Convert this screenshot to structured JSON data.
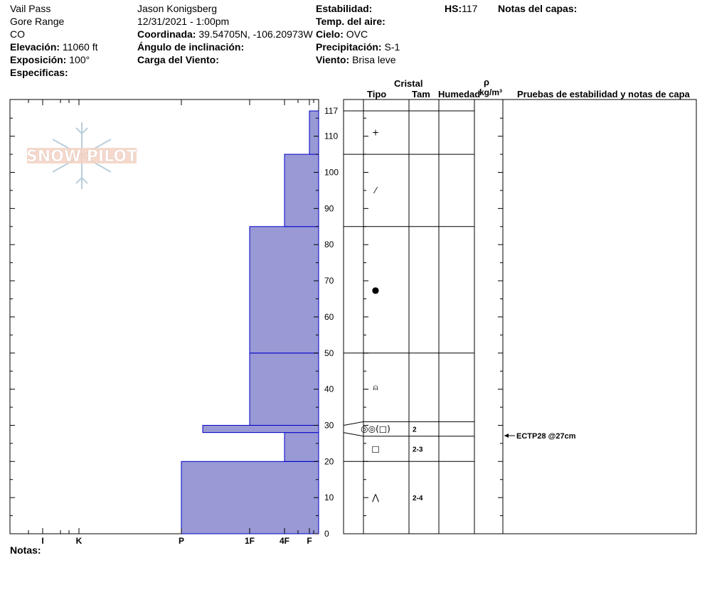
{
  "header": {
    "location": "Vail Pass",
    "range": "Gore Range",
    "state": "CO",
    "elevation_label": "Elevación:",
    "elevation": "11060 ft",
    "aspect_label": "Exposición:",
    "aspect": "100°",
    "specifics_label": "Especificas:",
    "observer": "Jason Konigsberg",
    "datetime": "12/31/2021 - 1:00pm",
    "coord_label": "Coordinada:",
    "coord": "39.54705N, -106.20973W",
    "slope_label": "Ángulo de inclinación:",
    "wind_load_label": "Carga del Viento:",
    "stability_label": "Estabilidad:",
    "air_temp_label": "Temp. del aire:",
    "sky_label": "Cielo:",
    "sky": "OVC",
    "precip_label": "Precipitación:",
    "precip": "S-1",
    "wind_label": "Viento:",
    "wind": "Brisa leve",
    "hs_label": "HS:",
    "hs": "117",
    "layer_notes_label": "Notas del capas:"
  },
  "notes_label": "Notas:",
  "logo_text": "SNOW PILOT",
  "table_headers": {
    "crystal": "Cristal",
    "type": "Tipo",
    "size": "Tam",
    "moisture": "Humedad",
    "rho": "ρ",
    "density_unit": "kg/m³",
    "tests": "Pruebas de estabilidad y notas de capa"
  },
  "test_result": "ECTP28 @27cm",
  "chart_data": {
    "type": "bar",
    "orientation": "horizontal",
    "y_axis": {
      "min": 0,
      "max": 117,
      "ticks": [
        0,
        10,
        20,
        30,
        40,
        50,
        60,
        70,
        80,
        90,
        100,
        110,
        117
      ]
    },
    "x_axis": {
      "categories": [
        "I",
        "K",
        "P",
        "1F",
        "4F",
        "F"
      ]
    },
    "hardness_profile": [
      {
        "bottom": 0,
        "top": 20,
        "hardness": "P"
      },
      {
        "bottom": 20,
        "top": 28,
        "hardness": "4F"
      },
      {
        "bottom": 28,
        "top": 30,
        "hardness": "P+"
      },
      {
        "bottom": 30,
        "top": 50,
        "hardness": "1F"
      },
      {
        "bottom": 50,
        "top": 85,
        "hardness": "1F"
      },
      {
        "bottom": 85,
        "top": 105,
        "hardness": "4F"
      },
      {
        "bottom": 105,
        "top": 117,
        "hardness": "F"
      }
    ],
    "layers": [
      {
        "bottom": 0,
        "top": 20,
        "grain_symbol": "⋀",
        "size": "2-4"
      },
      {
        "bottom": 20,
        "top": 27,
        "grain_symbol": "□",
        "size": "2-3"
      },
      {
        "bottom": 27,
        "top": 31,
        "grain_symbol": "◎◎(□)",
        "size": "2"
      },
      {
        "bottom": 31,
        "top": 50,
        "grain_symbol": "⍝",
        "size": ""
      },
      {
        "bottom": 50,
        "top": 85,
        "grain_symbol": "●",
        "size": ""
      },
      {
        "bottom": 85,
        "top": 105,
        "grain_symbol": "⁄",
        "size": ""
      },
      {
        "bottom": 105,
        "top": 117,
        "grain_symbol": "+",
        "size": ""
      }
    ],
    "test_depth_cm": 27,
    "colors": {
      "bar_fill": "#9999d6",
      "bar_stroke": "#0000cc"
    }
  }
}
